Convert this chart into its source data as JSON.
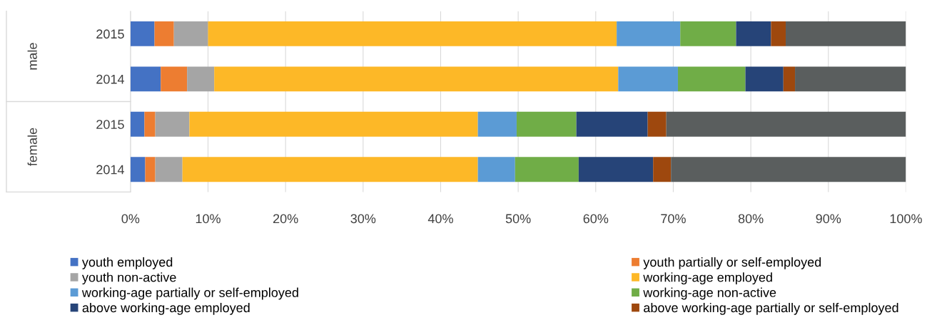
{
  "chart_data": {
    "type": "bar",
    "orientation": "horizontal",
    "stacked": true,
    "categories": [
      "2015",
      "2014",
      "2015",
      "2014"
    ],
    "annotations": [
      "male",
      "female"
    ],
    "xlim": [
      0,
      100
    ],
    "xticks": [
      {
        "value": 0,
        "label": "0%"
      },
      {
        "value": 10,
        "label": "10%"
      },
      {
        "value": 20,
        "label": "20%"
      },
      {
        "value": 30,
        "label": "30%"
      },
      {
        "value": 40,
        "label": "40%"
      },
      {
        "value": 50,
        "label": "50%"
      },
      {
        "value": 60,
        "label": "60%"
      },
      {
        "value": 70,
        "label": "70%"
      },
      {
        "value": 80,
        "label": "80%"
      },
      {
        "value": 90,
        "label": "90%"
      },
      {
        "value": 100,
        "label": "100%"
      }
    ],
    "grid": "x",
    "legend": "bottom",
    "series": [
      {
        "name": "youth employed",
        "color": "#4472c4",
        "values": [
          3.1,
          3.9,
          1.8,
          1.9
        ]
      },
      {
        "name": "youth partially or self-employed",
        "color": "#ed7d31",
        "values": [
          2.5,
          3.4,
          1.4,
          1.3
        ]
      },
      {
        "name": "youth non-active",
        "color": "#a5a5a5",
        "values": [
          4.4,
          3.5,
          4.4,
          3.5
        ]
      },
      {
        "name": "working-age employed",
        "color": "#fdb827",
        "values": [
          52.7,
          52.1,
          37.2,
          38.1
        ]
      },
      {
        "name": "working-age partially or self-employed",
        "color": "#5b9bd5",
        "values": [
          8.2,
          7.7,
          5.0,
          4.8
        ]
      },
      {
        "name": "working-age non-active",
        "color": "#70ad47",
        "values": [
          7.2,
          8.7,
          7.7,
          8.2
        ]
      },
      {
        "name": "above working-age employed",
        "color": "#264478",
        "values": [
          4.5,
          4.9,
          9.2,
          9.6
        ]
      },
      {
        "name": "above working-age partially or self-employed",
        "color": "#9e480e",
        "values": [
          1.9,
          1.5,
          2.4,
          2.3
        ]
      },
      {
        "color": "#5a5e5e",
        "values": [
          15.5,
          14.3,
          30.9,
          30.3
        ]
      }
    ]
  }
}
